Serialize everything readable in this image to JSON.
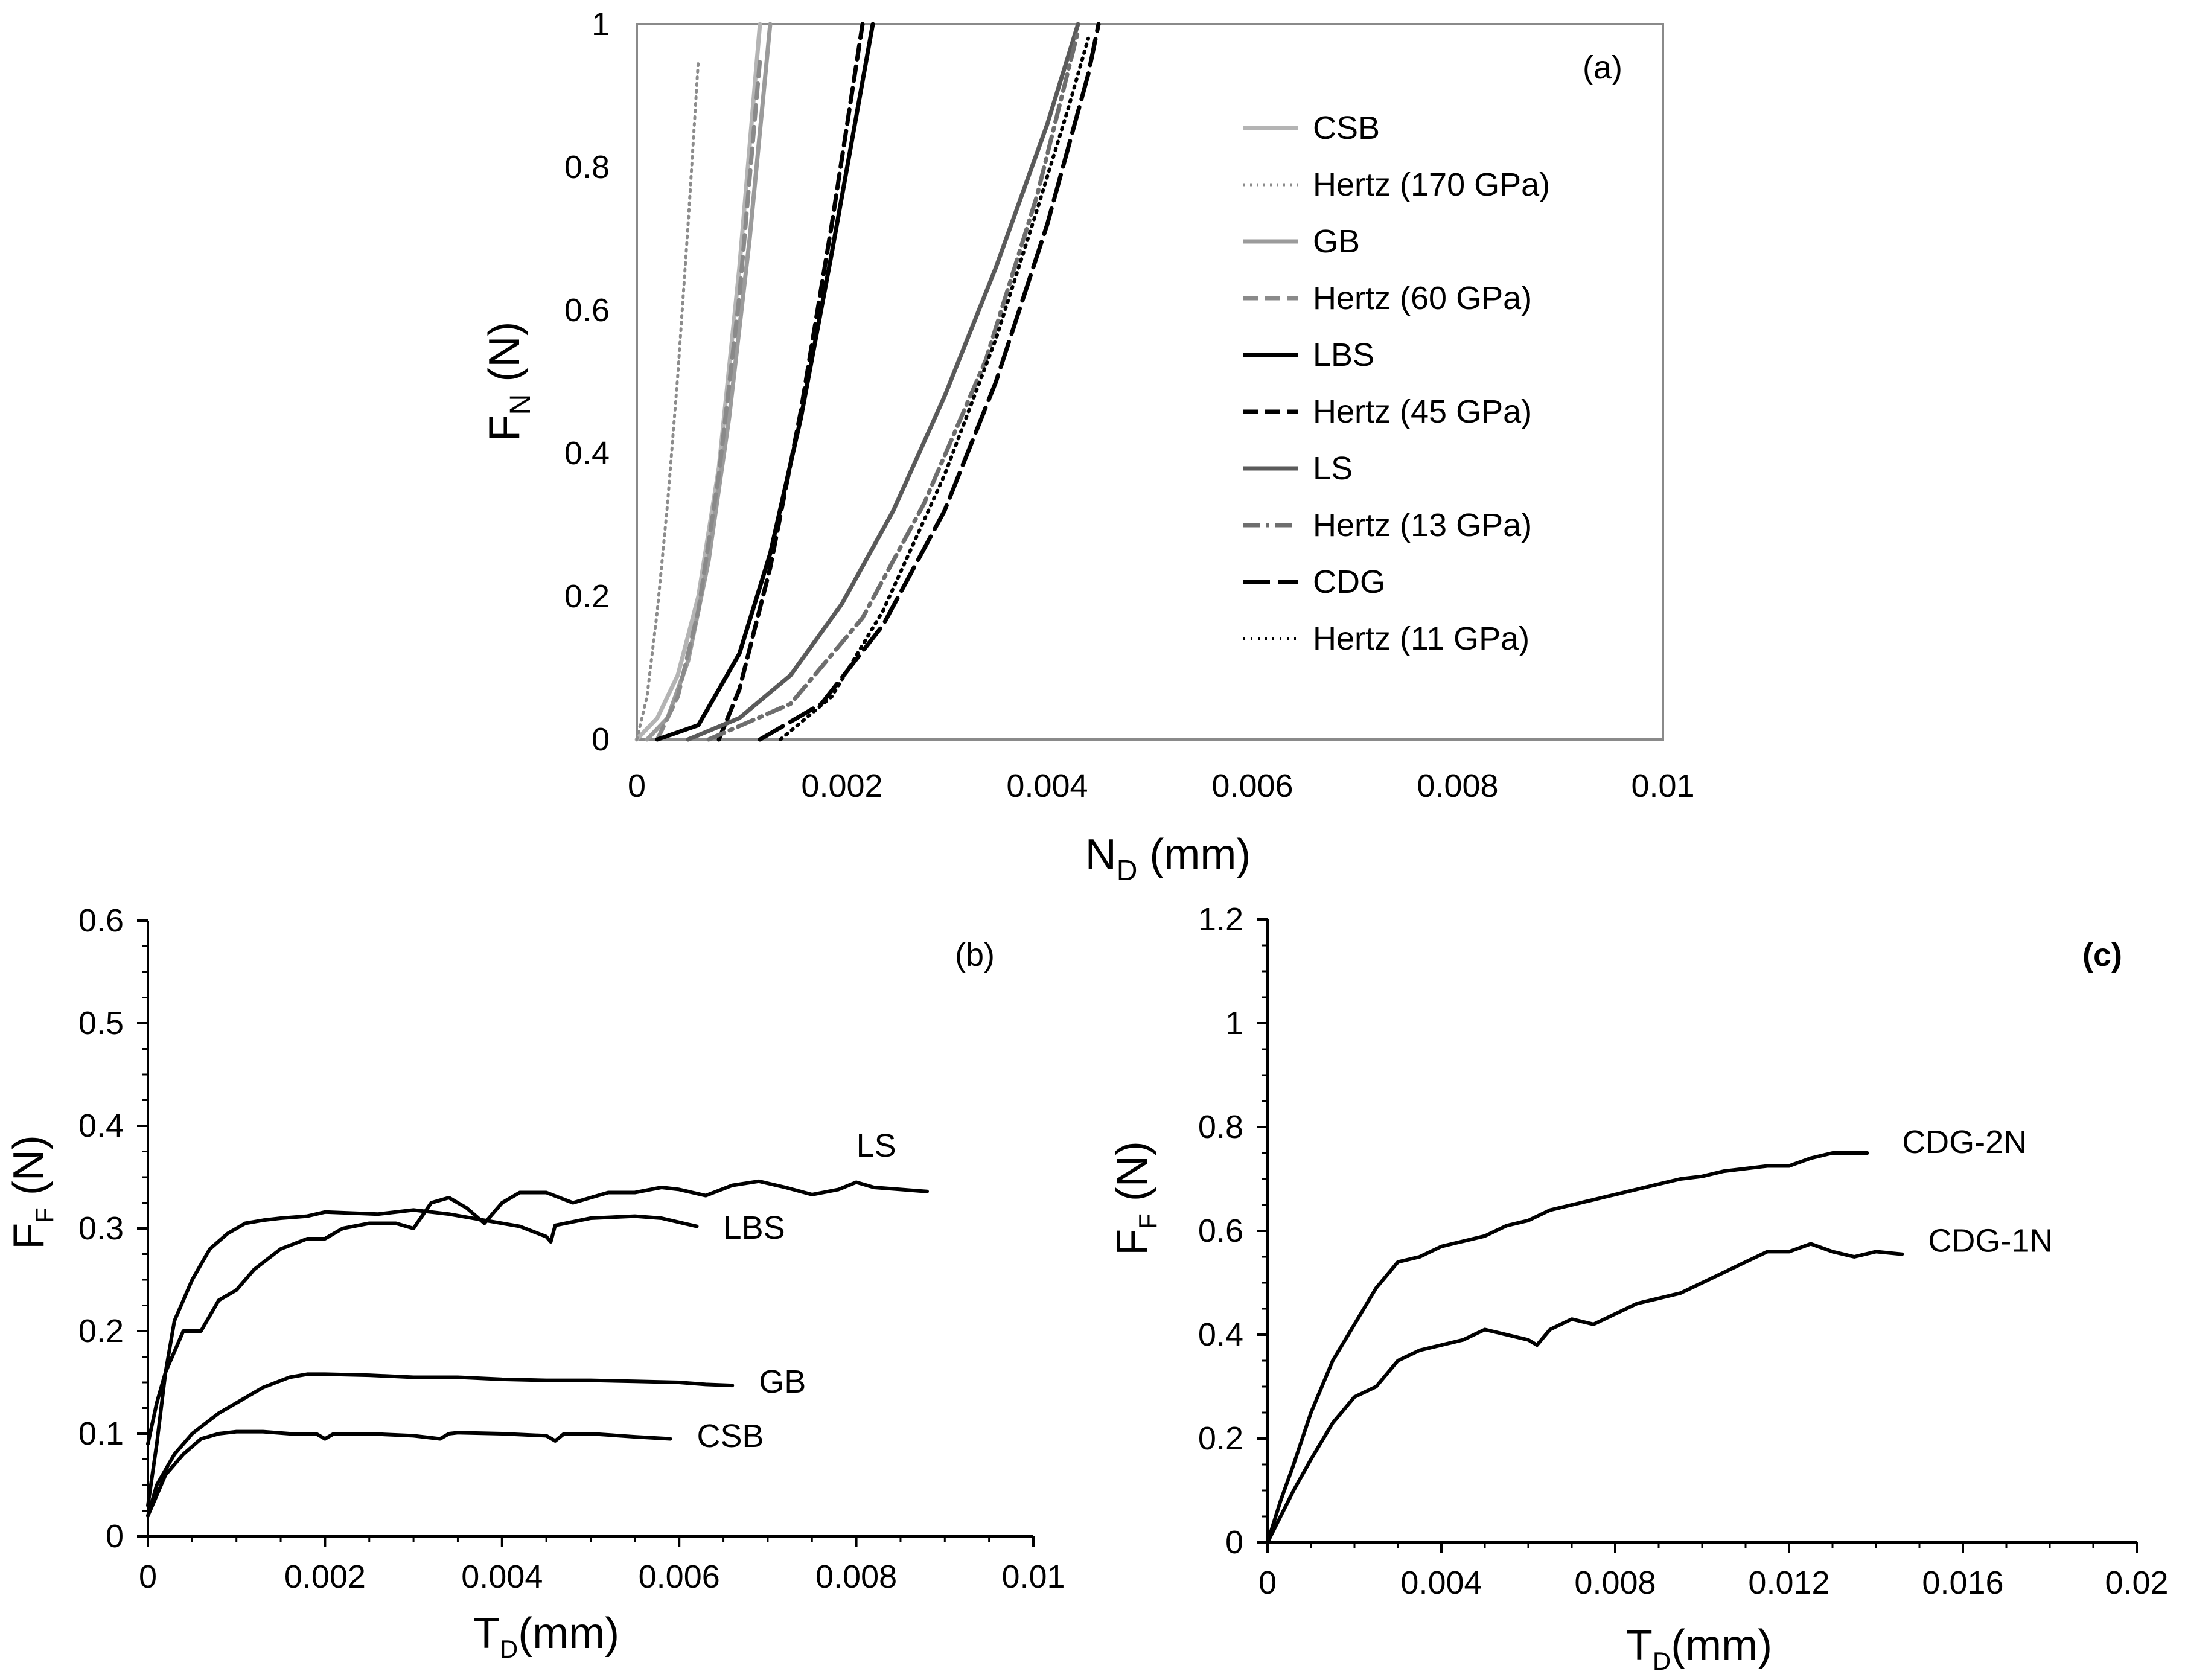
{
  "chart_data": [
    {
      "id": "a",
      "type": "line",
      "panel_label": "(a)",
      "xlabel": {
        "main": "N",
        "sub": "D",
        "rest": " (mm)"
      },
      "ylabel": {
        "main": "F",
        "sub": "N",
        "rest": "  (N)"
      },
      "xlim": [
        0,
        0.01
      ],
      "ylim": [
        0,
        1
      ],
      "xticks": [
        "0",
        "0.002",
        "0.004",
        "0.006",
        "0.008",
        "0.01"
      ],
      "yticks": [
        "0",
        "0.2",
        "0.4",
        "0.6",
        "0.8",
        "1"
      ],
      "legend_position": "right",
      "series": [
        {
          "name": "CSB",
          "style": "solid-light",
          "color": "#b4b4b4",
          "x": [
            0,
            0.0002,
            0.0004,
            0.0006,
            0.0008,
            0.001,
            0.0012
          ],
          "y": [
            0,
            0.03,
            0.09,
            0.2,
            0.38,
            0.66,
            1.0
          ]
        },
        {
          "name": "Hertz (170 GPa)",
          "style": "dotted-gray",
          "color": "#8c8c8c",
          "x": [
            0,
            0.0001,
            0.0002,
            0.0003,
            0.0004,
            0.0005,
            0.0006
          ],
          "y": [
            0,
            0.06,
            0.18,
            0.33,
            0.51,
            0.72,
            0.95
          ]
        },
        {
          "name": "GB",
          "style": "solid-gray",
          "color": "#9b9b9b",
          "x": [
            0.0001,
            0.0003,
            0.0005,
            0.0007,
            0.0009,
            0.0011,
            0.0013
          ],
          "y": [
            0,
            0.03,
            0.11,
            0.25,
            0.45,
            0.7,
            1.0
          ]
        },
        {
          "name": "Hertz (60 GPa)",
          "style": "dashed-gray",
          "color": "#8a8a8a",
          "x": [
            0.0002,
            0.0004,
            0.0006,
            0.0008,
            0.001,
            0.0012
          ],
          "y": [
            0,
            0.06,
            0.18,
            0.37,
            0.62,
            0.95
          ]
        },
        {
          "name": "LBS",
          "style": "solid-black",
          "color": "#000000",
          "x": [
            0.0002,
            0.0006,
            0.001,
            0.0013,
            0.0016,
            0.0019,
            0.0021,
            0.0023
          ],
          "y": [
            0,
            0.02,
            0.12,
            0.26,
            0.45,
            0.68,
            0.84,
            1.0
          ]
        },
        {
          "name": "Hertz (45 GPa)",
          "style": "dashed-black",
          "color": "#000000",
          "x": [
            0.0008,
            0.001,
            0.0013,
            0.0016,
            0.0019,
            0.0022
          ],
          "y": [
            0,
            0.07,
            0.24,
            0.46,
            0.72,
            1.0
          ]
        },
        {
          "name": "LS",
          "style": "solid-dark",
          "color": "#5a5a5a",
          "x": [
            0.0005,
            0.001,
            0.0015,
            0.002,
            0.0025,
            0.003,
            0.0035,
            0.004,
            0.0043
          ],
          "y": [
            0,
            0.03,
            0.09,
            0.19,
            0.32,
            0.48,
            0.66,
            0.86,
            1.0
          ]
        },
        {
          "name": "Hertz (13 GPa)",
          "style": "dashdot-gray",
          "color": "#6e6e6e",
          "x": [
            0.0007,
            0.0015,
            0.0022,
            0.0028,
            0.0034,
            0.0039,
            0.0043
          ],
          "y": [
            0,
            0.05,
            0.17,
            0.33,
            0.53,
            0.76,
            0.99
          ]
        },
        {
          "name": "CDG",
          "style": "longdash-black",
          "color": "#000000",
          "x": [
            0.0012,
            0.0018,
            0.0024,
            0.003,
            0.0035,
            0.004,
            0.0044,
            0.0045
          ],
          "y": [
            0,
            0.05,
            0.16,
            0.32,
            0.5,
            0.72,
            0.93,
            1.0
          ]
        },
        {
          "name": "Hertz (11 GPa)",
          "style": "dotted-black",
          "color": "#000000",
          "x": [
            0.0014,
            0.0019,
            0.0024,
            0.003,
            0.0035,
            0.0039,
            0.0042,
            0.0044
          ],
          "y": [
            0,
            0.06,
            0.18,
            0.37,
            0.56,
            0.74,
            0.88,
            0.98
          ]
        }
      ]
    },
    {
      "id": "b",
      "type": "line",
      "panel_label": "(b)",
      "xlabel": {
        "main": "T",
        "sub": "D",
        "rest": "(mm)"
      },
      "ylabel": {
        "main": "F",
        "sub": "F",
        "rest": " (N)"
      },
      "xlim": [
        0,
        0.01
      ],
      "ylim": [
        0,
        0.6
      ],
      "xticks": [
        "0",
        "0.002",
        "0.004",
        "0.006",
        "0.008",
        "0.01"
      ],
      "yticks": [
        "0",
        "0.1",
        "0.2",
        "0.3",
        "0.4",
        "0.5",
        "0.6"
      ],
      "series": [
        {
          "name": "LS",
          "x": [
            0,
            0.0001,
            0.0002,
            0.0004,
            0.0006,
            0.0008,
            0.001,
            0.0012,
            0.0015,
            0.0018,
            0.002,
            0.0022,
            0.0025,
            0.0028,
            0.003,
            0.0032,
            0.0034,
            0.0036,
            0.0038,
            0.004,
            0.0042,
            0.0045,
            0.0048,
            0.005,
            0.0052,
            0.0055,
            0.0058,
            0.006,
            0.0063,
            0.0066,
            0.0069,
            0.0072,
            0.0075,
            0.0078,
            0.008,
            0.0082,
            0.0085,
            0.0088
          ],
          "y": [
            0.09,
            0.13,
            0.16,
            0.2,
            0.2,
            0.23,
            0.24,
            0.26,
            0.28,
            0.29,
            0.29,
            0.3,
            0.305,
            0.305,
            0.3,
            0.325,
            0.33,
            0.32,
            0.305,
            0.325,
            0.335,
            0.335,
            0.325,
            0.33,
            0.335,
            0.335,
            0.34,
            0.338,
            0.332,
            0.342,
            0.346,
            0.34,
            0.333,
            0.338,
            0.345,
            0.34,
            0.338,
            0.336
          ]
        },
        {
          "name": "LBS",
          "x": [
            0,
            0.0001,
            0.0002,
            0.0003,
            0.0005,
            0.0007,
            0.0009,
            0.0011,
            0.0013,
            0.0015,
            0.0018,
            0.002,
            0.0023,
            0.0026,
            0.003,
            0.0034,
            0.0038,
            0.0042,
            0.0045,
            0.00455,
            0.0046,
            0.005,
            0.0055,
            0.0058,
            0.0062
          ],
          "y": [
            0.03,
            0.09,
            0.16,
            0.21,
            0.25,
            0.28,
            0.295,
            0.305,
            0.308,
            0.31,
            0.312,
            0.316,
            0.315,
            0.314,
            0.318,
            0.314,
            0.308,
            0.302,
            0.292,
            0.287,
            0.303,
            0.31,
            0.312,
            0.31,
            0.302
          ]
        },
        {
          "name": "GB",
          "x": [
            0,
            0.0001,
            0.0003,
            0.0005,
            0.0008,
            0.001,
            0.0013,
            0.0016,
            0.0018,
            0.002,
            0.0025,
            0.003,
            0.0035,
            0.004,
            0.0045,
            0.005,
            0.0055,
            0.006,
            0.0063,
            0.0066
          ],
          "y": [
            0.02,
            0.05,
            0.08,
            0.1,
            0.12,
            0.13,
            0.145,
            0.155,
            0.158,
            0.158,
            0.157,
            0.155,
            0.155,
            0.153,
            0.152,
            0.152,
            0.151,
            0.15,
            0.148,
            0.147
          ]
        },
        {
          "name": "CSB",
          "x": [
            0,
            0.0001,
            0.0002,
            0.0004,
            0.0006,
            0.0008,
            0.001,
            0.0013,
            0.0016,
            0.0019,
            0.002,
            0.0021,
            0.0025,
            0.003,
            0.0033,
            0.0034,
            0.0035,
            0.004,
            0.0045,
            0.0046,
            0.0047,
            0.005,
            0.0055,
            0.0059
          ],
          "y": [
            0.02,
            0.04,
            0.06,
            0.08,
            0.095,
            0.1,
            0.102,
            0.102,
            0.1,
            0.1,
            0.095,
            0.1,
            0.1,
            0.098,
            0.095,
            0.1,
            0.101,
            0.1,
            0.098,
            0.093,
            0.1,
            0.1,
            0.097,
            0.095
          ]
        }
      ],
      "annotations": [
        {
          "text": "LS",
          "x": 0.008,
          "y": 0.37
        },
        {
          "text": "LBS",
          "x": 0.0065,
          "y": 0.29
        },
        {
          "text": "GB",
          "x": 0.0069,
          "y": 0.14
        },
        {
          "text": "CSB",
          "x": 0.0062,
          "y": 0.087
        }
      ]
    },
    {
      "id": "c",
      "type": "line",
      "panel_label": "(c)",
      "xlabel": {
        "main": "T",
        "sub": "D",
        "rest": "(mm)"
      },
      "ylabel": {
        "main": "F",
        "sub": "F",
        "rest": " (N)"
      },
      "xlim": [
        0,
        0.02
      ],
      "ylim": [
        0,
        1.2
      ],
      "xticks": [
        "0",
        "0.004",
        "0.008",
        "0.012",
        "0.016",
        "0.02"
      ],
      "yticks": [
        "0",
        "0.2",
        "0.4",
        "0.6",
        "0.8",
        "1",
        "1.2"
      ],
      "series": [
        {
          "name": "CDG-2N",
          "x": [
            0,
            0.0003,
            0.0006,
            0.001,
            0.0015,
            0.002,
            0.0025,
            0.003,
            0.0035,
            0.004,
            0.0045,
            0.005,
            0.0055,
            0.006,
            0.0065,
            0.007,
            0.0075,
            0.008,
            0.0085,
            0.009,
            0.0095,
            0.01,
            0.0105,
            0.011,
            0.0115,
            0.012,
            0.0125,
            0.013,
            0.0138
          ],
          "y": [
            0,
            0.08,
            0.15,
            0.25,
            0.35,
            0.42,
            0.49,
            0.54,
            0.55,
            0.57,
            0.58,
            0.59,
            0.61,
            0.62,
            0.64,
            0.65,
            0.66,
            0.67,
            0.68,
            0.69,
            0.7,
            0.705,
            0.715,
            0.72,
            0.725,
            0.725,
            0.74,
            0.75,
            0.75
          ]
        },
        {
          "name": "CDG-1N",
          "x": [
            0,
            0.0003,
            0.0006,
            0.001,
            0.0015,
            0.002,
            0.0025,
            0.003,
            0.0035,
            0.004,
            0.0045,
            0.005,
            0.0055,
            0.006,
            0.0062,
            0.0065,
            0.007,
            0.0075,
            0.008,
            0.0085,
            0.009,
            0.0095,
            0.01,
            0.0105,
            0.011,
            0.0115,
            0.012,
            0.0125,
            0.013,
            0.0135,
            0.014,
            0.0146
          ],
          "y": [
            0,
            0.05,
            0.1,
            0.16,
            0.23,
            0.28,
            0.3,
            0.35,
            0.37,
            0.38,
            0.39,
            0.41,
            0.4,
            0.39,
            0.38,
            0.41,
            0.43,
            0.42,
            0.44,
            0.46,
            0.47,
            0.48,
            0.5,
            0.52,
            0.54,
            0.56,
            0.56,
            0.575,
            0.56,
            0.55,
            0.56,
            0.555
          ]
        }
      ],
      "annotations": [
        {
          "text": "CDG-2N",
          "x": 0.0146,
          "y": 0.75
        },
        {
          "text": "CDG-1N",
          "x": 0.0152,
          "y": 0.56
        }
      ]
    }
  ]
}
